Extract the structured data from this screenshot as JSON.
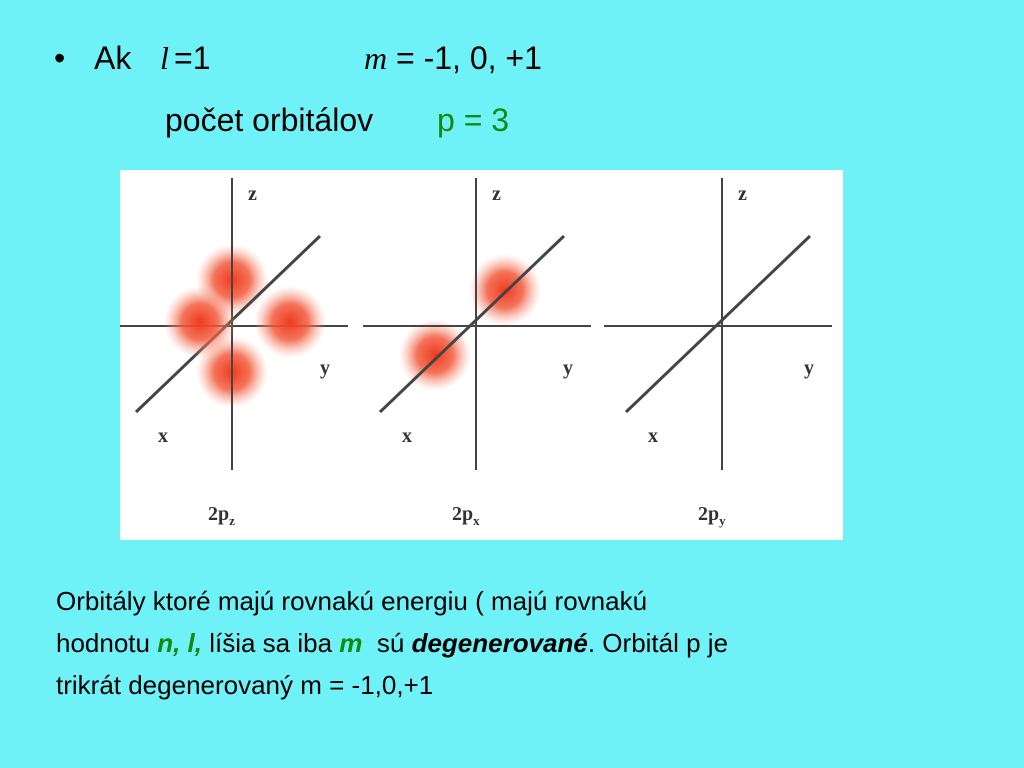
{
  "bullet": {
    "lead": "Ak",
    "l_symbol": "l",
    "l_value": "=1",
    "m_symbol": "m",
    "m_values": "= -1, 0, +1"
  },
  "count_line": {
    "text": "počet orbitálov",
    "highlight": "p = 3"
  },
  "figure": {
    "panels": [
      {
        "axis_z": "z",
        "axis_y": "y",
        "axis_x": "x",
        "label": "2p",
        "subscript": "z"
      },
      {
        "axis_z": "z",
        "axis_y": "y",
        "axis_x": "x",
        "label": "2p",
        "subscript": "x"
      },
      {
        "axis_z": "z",
        "axis_y": "y",
        "axis_x": "x",
        "label": "2p",
        "subscript": "y"
      }
    ]
  },
  "paragraph": {
    "runs": [
      "Orbitály ktoré majú rovnakú energiu ( majú rovnakú",
      "hodnotu ",
      "n, l,",
      " líšia sa iba ",
      "m",
      "  sú ",
      "degenerované",
      ". Orbitál p je",
      "trikrát degenerovaný m = -1,0,+1"
    ]
  }
}
